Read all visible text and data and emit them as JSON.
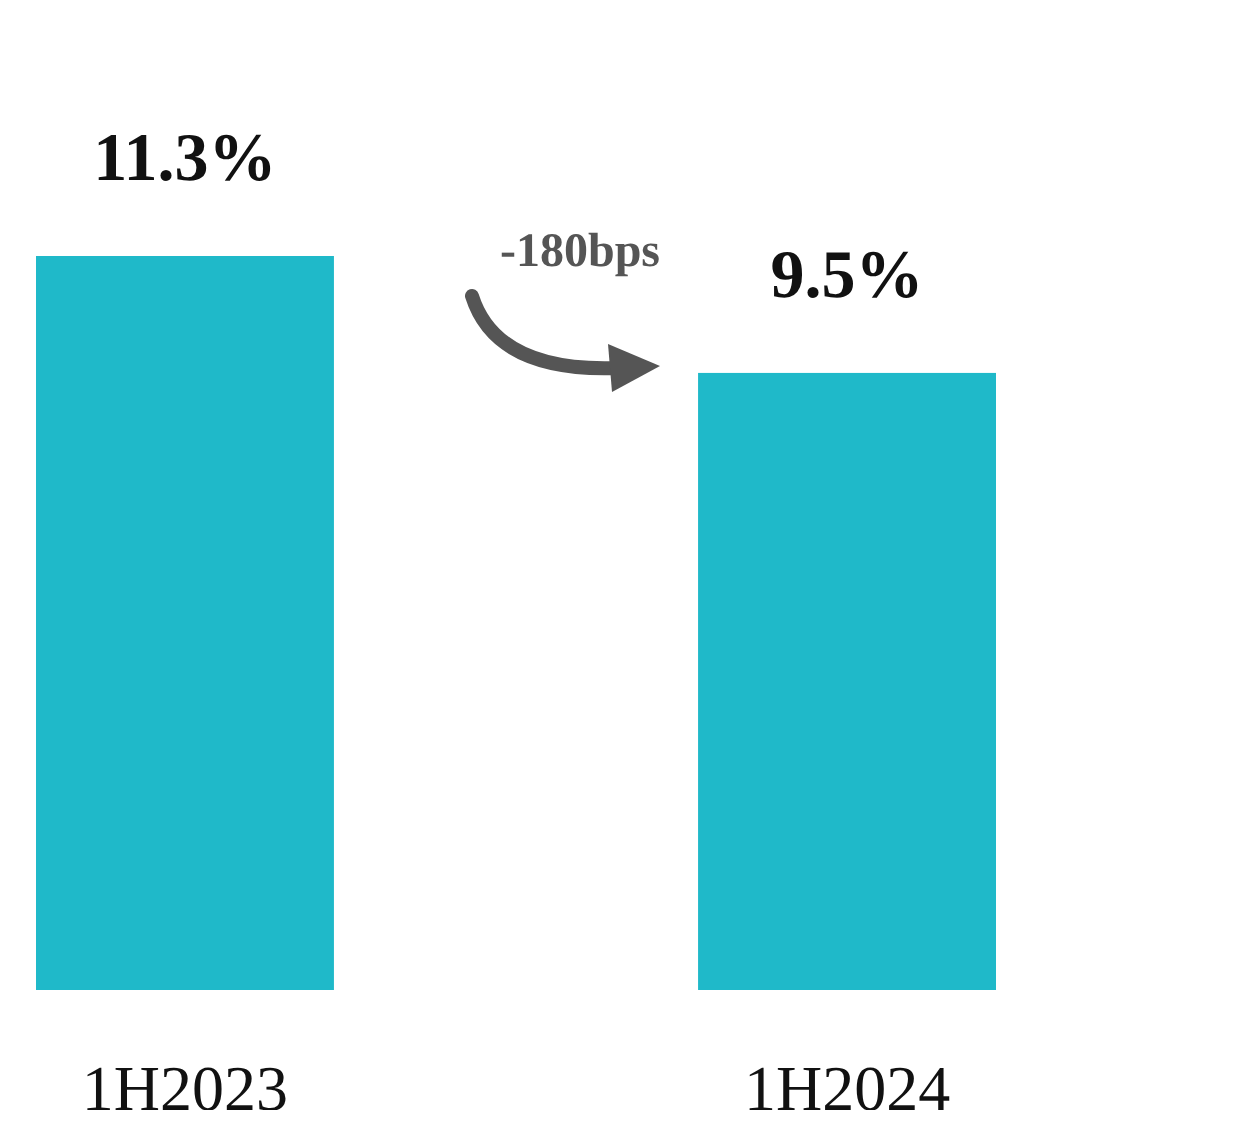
{
  "chart_data": {
    "type": "bar",
    "categories": [
      "1H2023",
      "1H2024"
    ],
    "values": [
      11.3,
      9.5
    ],
    "value_labels": [
      "11.3%",
      "9.5%"
    ],
    "color": "#1fb9c9",
    "annotations": [
      "-180bps"
    ]
  }
}
